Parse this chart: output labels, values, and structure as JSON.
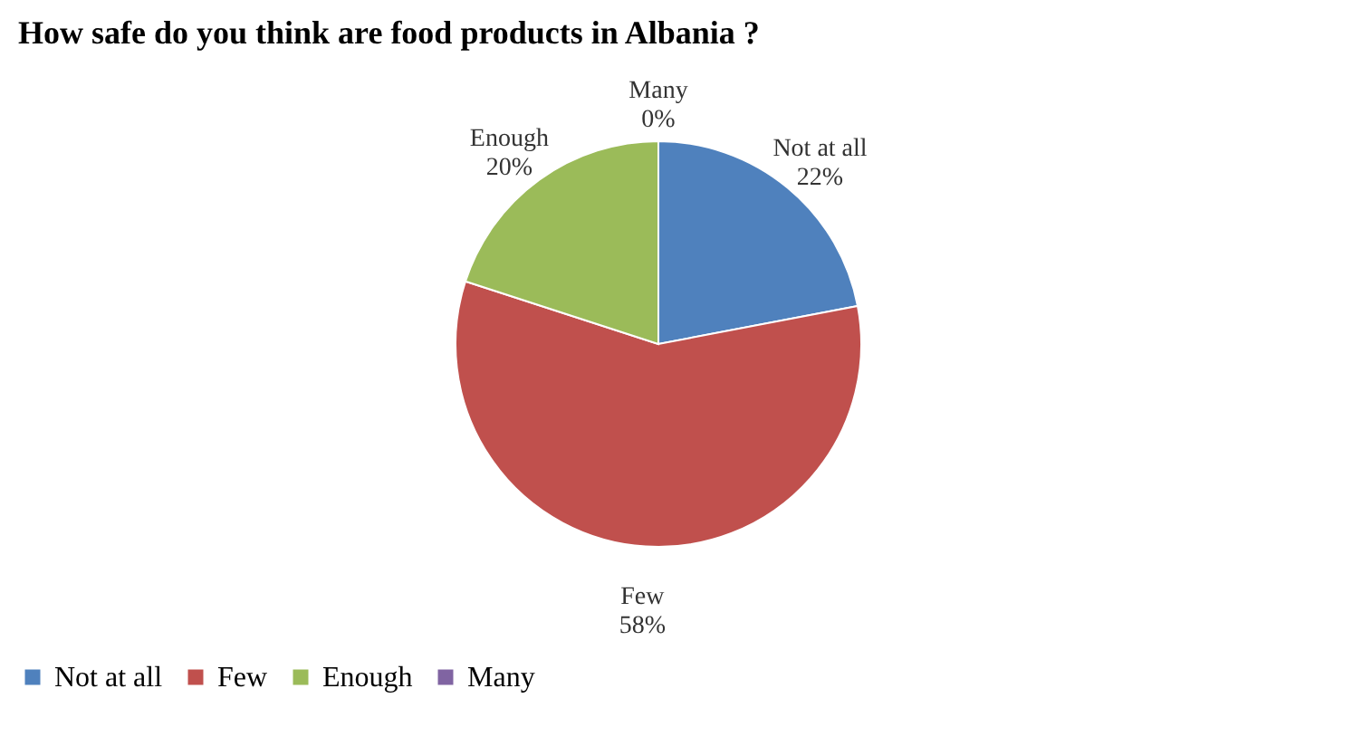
{
  "chart_data": {
    "type": "pie",
    "title": "How safe do you think are food products in Albania ?",
    "categories": [
      "Not at all",
      "Few",
      "Enough",
      "Many"
    ],
    "values": [
      22,
      58,
      20,
      0
    ],
    "value_labels": [
      "22%",
      "58%",
      "20%",
      "0%"
    ],
    "colors": [
      "#4f81bd",
      "#c0504d",
      "#9bbb59",
      "#8064a2"
    ],
    "legend": "bottom"
  }
}
